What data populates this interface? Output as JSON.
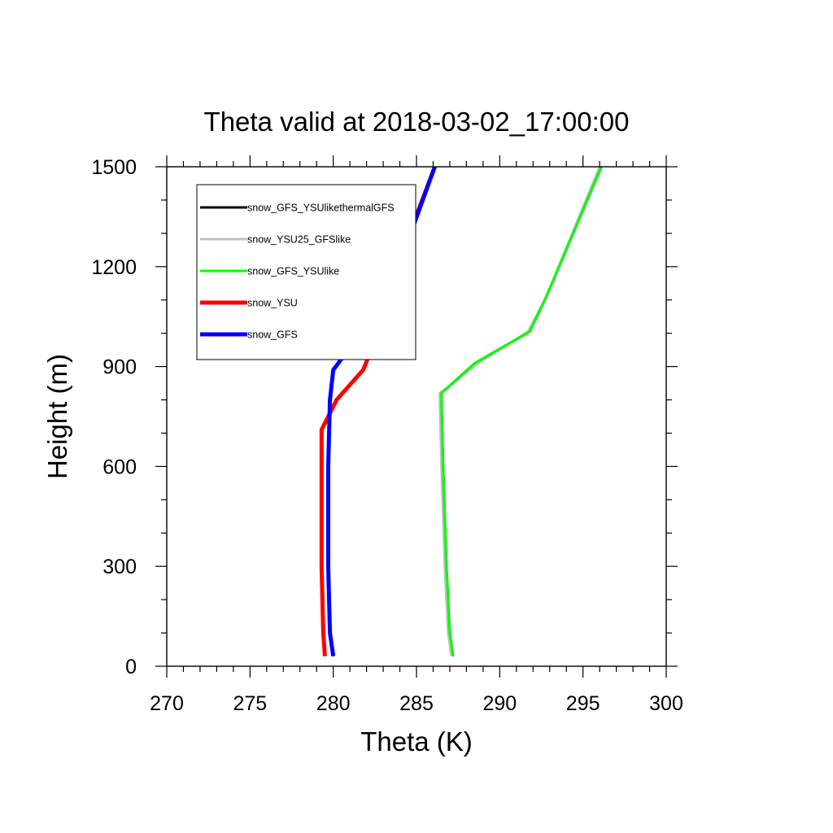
{
  "chart_data": {
    "type": "line",
    "title": "Theta valid at 2018-03-02_17:00:00",
    "xlabel": "Theta (K)",
    "ylabel": "Height (m)",
    "xlim": [
      270,
      300
    ],
    "ylim": [
      0,
      1500
    ],
    "x_ticks": [
      270,
      275,
      280,
      285,
      290,
      295,
      300
    ],
    "y_ticks": [
      0,
      300,
      600,
      900,
      1200,
      1500
    ],
    "x_tick_labels": [
      "270",
      "275",
      "280",
      "285",
      "290",
      "295",
      "300"
    ],
    "y_tick_labels": [
      "0",
      "300",
      "600",
      "900",
      "1200",
      "1500"
    ],
    "grid": false,
    "legend_position": "top-left",
    "series": [
      {
        "name": "snow_GFS_YSUlikethermalGFS",
        "color": "#000000",
        "points": [
          [
            287.2,
            30
          ],
          [
            287.0,
            100
          ],
          [
            286.8,
            300
          ],
          [
            286.6,
            600
          ],
          [
            286.5,
            800
          ],
          [
            286.5,
            820
          ],
          [
            288.5,
            910
          ],
          [
            291.8,
            1005
          ],
          [
            292.8,
            1110
          ],
          [
            296.1,
            1500
          ]
        ]
      },
      {
        "name": "snow_YSU25_GFSlike",
        "color": "#bfbfbf",
        "points": [
          [
            287.1,
            30
          ],
          [
            286.9,
            100
          ],
          [
            286.7,
            300
          ],
          [
            286.5,
            600
          ],
          [
            286.4,
            800
          ],
          [
            286.4,
            820
          ],
          [
            288.7,
            910
          ],
          [
            291.7,
            1005
          ],
          [
            292.8,
            1110
          ],
          [
            296.0,
            1500
          ]
        ]
      },
      {
        "name": "snow_GFS_YSUlike",
        "color": "#00ff00",
        "points": [
          [
            287.2,
            30
          ],
          [
            287.0,
            100
          ],
          [
            286.8,
            300
          ],
          [
            286.6,
            600
          ],
          [
            286.5,
            800
          ],
          [
            286.5,
            820
          ],
          [
            288.5,
            910
          ],
          [
            291.8,
            1005
          ],
          [
            292.8,
            1110
          ],
          [
            296.1,
            1500
          ]
        ]
      },
      {
        "name": "snow_YSU",
        "color": "#ff0000",
        "points": [
          [
            279.5,
            30
          ],
          [
            279.4,
            100
          ],
          [
            279.3,
            300
          ],
          [
            279.3,
            600
          ],
          [
            279.3,
            710
          ],
          [
            280.2,
            800
          ],
          [
            281.8,
            890
          ],
          [
            282.6,
            990
          ],
          [
            283.0,
            1090
          ],
          [
            286.1,
            1500
          ]
        ]
      },
      {
        "name": "snow_GFS",
        "color": "#0000ff",
        "points": [
          [
            280.0,
            30
          ],
          [
            279.8,
            100
          ],
          [
            279.7,
            300
          ],
          [
            279.7,
            600
          ],
          [
            279.8,
            800
          ],
          [
            280.0,
            890
          ],
          [
            281.5,
            990
          ],
          [
            283.1,
            1085
          ],
          [
            286.1,
            1500
          ]
        ]
      }
    ]
  }
}
